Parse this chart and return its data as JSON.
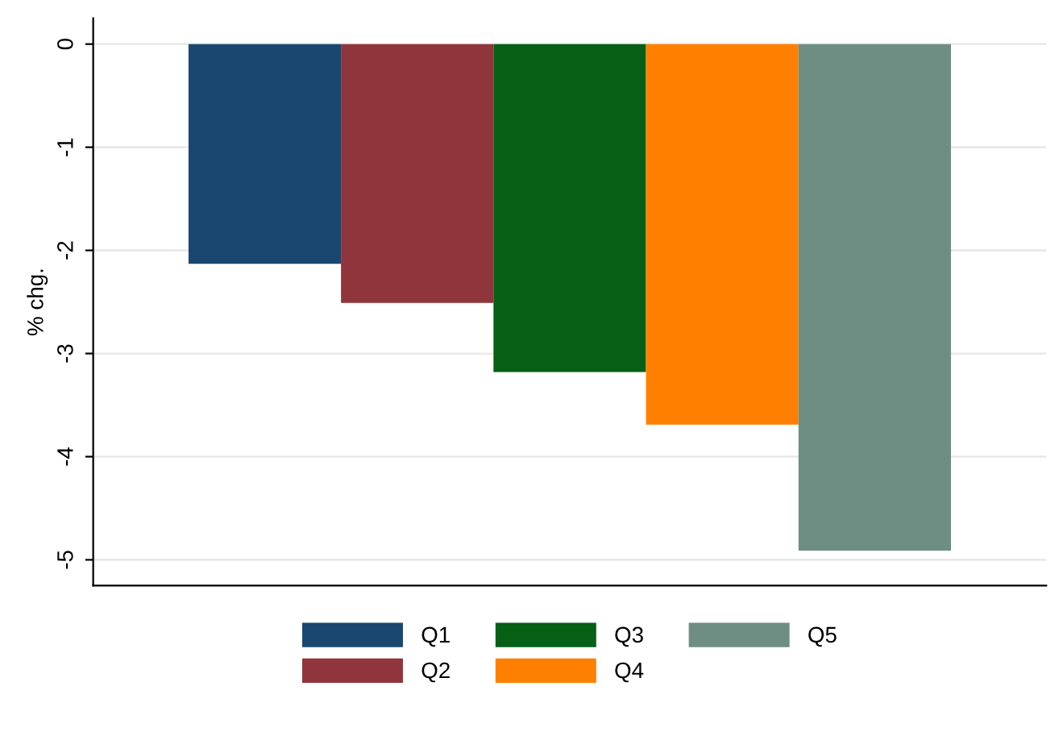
{
  "chart_data": {
    "type": "bar",
    "ylabel": "% chg.",
    "categories": [
      null
    ],
    "series": [
      {
        "name": "Q1",
        "color": "#1a476f",
        "values": [
          -2.13
        ]
      },
      {
        "name": "Q2",
        "color": "#90353b",
        "values": [
          -2.51
        ]
      },
      {
        "name": "Q3",
        "color": "#055f15",
        "values": [
          -3.18
        ]
      },
      {
        "name": "Q4",
        "color": "#ff8000",
        "values": [
          -3.69
        ]
      },
      {
        "name": "Q5",
        "color": "#6e8e84",
        "values": [
          -4.91
        ]
      }
    ],
    "ylim": [
      -5.25,
      0.25
    ],
    "yticks": [
      0,
      -1,
      -2,
      -3,
      -4,
      -5
    ],
    "grid": "y",
    "legend": "bottom",
    "tick_labels": "y"
  }
}
